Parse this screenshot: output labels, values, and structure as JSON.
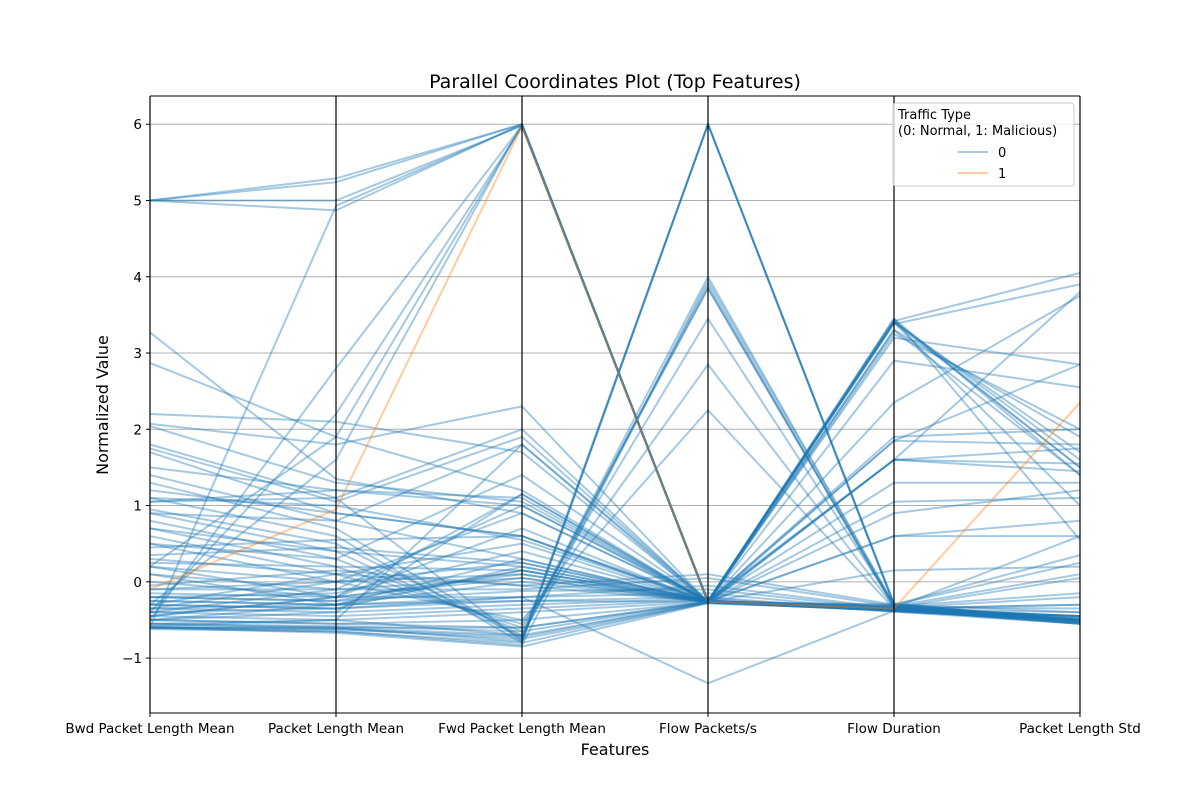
{
  "chart_data": {
    "type": "line",
    "subtype": "parallel-coordinates",
    "title": "Parallel Coordinates Plot (Top Features)",
    "xlabel": "Features",
    "ylabel": "Normalized Value",
    "categories": [
      "Bwd Packet Length Mean",
      "Packet Length Mean",
      "Fwd Packet Length Mean",
      "Flow Packets/s",
      "Flow Duration",
      "Packet Length Std"
    ],
    "ylim": [
      -1.72,
      6.37
    ],
    "yticks": [
      -1,
      0,
      1,
      2,
      3,
      4,
      5,
      6
    ],
    "ytick_labels": [
      "−1",
      "0",
      "1",
      "2",
      "3",
      "4",
      "5",
      "6"
    ],
    "grid": true,
    "legend": {
      "title_line1": "Traffic Type",
      "title_line2": "(0: Normal, 1: Malicious)",
      "placement": "top-right",
      "entries": [
        {
          "label": "0",
          "color": "#1f77b4"
        },
        {
          "label": "1",
          "color": "#ff7f0e"
        }
      ]
    },
    "series": [
      {
        "name": "0",
        "color": "#1f77b4",
        "opacity": 0.4,
        "lines": [
          [
            5.0,
            5.29,
            6.0,
            -0.26,
            -0.33,
            -0.52
          ],
          [
            5.0,
            5.24,
            6.0,
            -0.26,
            -0.35,
            -0.5
          ],
          [
            5.0,
            5.0,
            5.98,
            -0.27,
            -0.34,
            -0.55
          ],
          [
            5.0,
            4.87,
            6.0,
            -0.27,
            -0.36,
            -0.54
          ],
          [
            -0.6,
            4.93,
            5.99,
            -0.26,
            -0.33,
            -0.5
          ],
          [
            -0.5,
            2.8,
            5.98,
            -0.25,
            -0.35,
            -0.45
          ],
          [
            -0.4,
            2.2,
            5.97,
            -0.27,
            -0.34,
            -0.5
          ],
          [
            -0.3,
            1.6,
            6.0,
            -0.26,
            -0.36,
            -0.5
          ],
          [
            0.2,
            1.9,
            5.98,
            -0.25,
            -0.35,
            -0.5
          ],
          [
            3.27,
            1.35,
            0.9,
            -0.25,
            3.45,
            0.55
          ],
          [
            2.87,
            1.9,
            1.2,
            -0.26,
            3.4,
            1.0
          ],
          [
            2.2,
            2.1,
            1.7,
            -0.27,
            3.3,
            1.4
          ],
          [
            2.07,
            1.8,
            2.3,
            -0.27,
            3.42,
            4.05
          ],
          [
            2.04,
            1.3,
            1.05,
            -0.25,
            3.38,
            3.9
          ],
          [
            1.8,
            1.1,
            2.0,
            -0.27,
            2.35,
            3.75
          ],
          [
            1.75,
            1.05,
            1.9,
            -0.26,
            3.2,
            2.85
          ],
          [
            1.7,
            0.9,
            0.6,
            -0.27,
            2.9,
            2.55
          ],
          [
            1.5,
            1.2,
            1.1,
            -0.26,
            1.9,
            2.0
          ],
          [
            1.4,
            0.8,
            1.8,
            -0.28,
            1.6,
            1.75
          ],
          [
            1.3,
            0.7,
            -0.75,
            6.0,
            -0.28,
            -0.52
          ],
          [
            1.1,
            0.6,
            -0.8,
            6.0,
            -0.3,
            -0.5
          ],
          [
            1.05,
            1.1,
            -0.78,
            6.0,
            -0.3,
            -0.53
          ],
          [
            0.95,
            0.5,
            -0.7,
            4.0,
            -0.3,
            -0.5
          ],
          [
            0.9,
            0.4,
            -0.72,
            3.9,
            -0.35,
            -0.45
          ],
          [
            0.8,
            0.3,
            -0.65,
            3.85,
            -0.32,
            -0.48
          ],
          [
            0.7,
            0.2,
            -0.6,
            3.45,
            -0.3,
            -0.5
          ],
          [
            0.6,
            0.1,
            -0.55,
            2.85,
            -0.33,
            -0.5
          ],
          [
            0.5,
            0.0,
            -0.5,
            2.25,
            -0.35,
            -0.5
          ],
          [
            0.45,
            0.55,
            0.6,
            -0.24,
            1.6,
            1.55
          ],
          [
            0.35,
            0.45,
            0.25,
            -0.25,
            1.3,
            1.3
          ],
          [
            0.25,
            0.2,
            0.15,
            -0.26,
            1.05,
            1.1
          ],
          [
            0.2,
            -0.2,
            0.05,
            -0.26,
            0.6,
            0.6
          ],
          [
            0.1,
            -0.3,
            0.0,
            -0.26,
            0.15,
            0.2
          ],
          [
            -0.05,
            0.15,
            -0.05,
            0.1,
            -0.3,
            0.35
          ],
          [
            -0.1,
            -0.1,
            -0.1,
            0.05,
            -0.32,
            -0.15
          ],
          [
            -0.15,
            -0.2,
            -0.2,
            -0.05,
            -0.35,
            -0.3
          ],
          [
            -0.2,
            -0.25,
            -0.12,
            -0.1,
            -0.36,
            -0.4
          ],
          [
            -0.25,
            -0.3,
            -0.2,
            -0.15,
            -0.38,
            -0.45
          ],
          [
            -0.3,
            -0.35,
            -0.25,
            -0.2,
            -0.39,
            -0.5
          ],
          [
            -0.35,
            -0.4,
            -0.3,
            -0.22,
            -0.38,
            -0.52
          ],
          [
            -0.4,
            -0.45,
            -0.35,
            -0.24,
            -0.39,
            -0.55
          ],
          [
            -0.45,
            -0.5,
            -0.4,
            -0.26,
            -0.38,
            -0.53
          ],
          [
            -0.5,
            -0.55,
            -0.5,
            -0.27,
            -0.37,
            -0.55
          ],
          [
            -0.55,
            -0.6,
            -0.6,
            -0.27,
            -0.38,
            -0.52
          ],
          [
            -0.6,
            -0.62,
            -0.75,
            -0.28,
            -0.37,
            -0.55
          ],
          [
            -0.62,
            -0.65,
            -0.8,
            -0.27,
            -0.38,
            -0.5
          ],
          [
            -0.6,
            -0.67,
            -0.85,
            -0.28,
            -0.37,
            -0.53
          ],
          [
            -0.6,
            -0.6,
            -0.78,
            6.0,
            -0.3,
            -0.5
          ],
          [
            -0.6,
            -0.65,
            -0.83,
            3.95,
            -0.3,
            -0.48
          ],
          [
            -0.55,
            -0.5,
            -0.7,
            3.85,
            -0.32,
            -0.5
          ],
          [
            -0.5,
            -0.3,
            0.15,
            -0.25,
            3.42,
            1.6
          ],
          [
            -0.45,
            -0.2,
            0.1,
            -0.26,
            3.3,
            1.9
          ],
          [
            -0.4,
            -0.1,
            0.05,
            -0.27,
            3.25,
            2.0
          ],
          [
            -0.35,
            0.0,
            0.1,
            -0.26,
            3.45,
            1.4
          ],
          [
            -0.3,
            0.1,
            -0.05,
            -0.26,
            3.4,
            1.5
          ],
          [
            -0.3,
            -0.35,
            0.2,
            -0.25,
            1.85,
            1.8
          ],
          [
            -0.25,
            -0.3,
            0.3,
            -0.26,
            1.6,
            1.45
          ],
          [
            -0.2,
            -0.25,
            0.15,
            -0.27,
            0.9,
            1.2
          ],
          [
            -0.35,
            -0.3,
            -0.25,
            -0.26,
            0.6,
            0.8
          ],
          [
            -0.4,
            -0.35,
            -0.2,
            -1.33,
            -0.38,
            -0.5
          ],
          [
            0.0,
            -0.2,
            1.15,
            -0.26,
            -0.35,
            -0.45
          ],
          [
            0.1,
            -0.1,
            1.0,
            -0.25,
            -0.34,
            -0.2
          ],
          [
            0.2,
            0.0,
            0.9,
            -0.26,
            -0.32,
            0.1
          ],
          [
            0.3,
            0.1,
            0.5,
            -0.27,
            -0.3,
            0.25
          ],
          [
            0.5,
            0.3,
            1.4,
            -0.26,
            -0.3,
            -0.4
          ],
          [
            1.1,
            1.0,
            0.55,
            -0.25,
            -0.33,
            -0.35
          ],
          [
            0.9,
            0.8,
            0.3,
            -0.26,
            -0.35,
            -0.45
          ],
          [
            0.7,
            0.4,
            0.2,
            -0.26,
            -0.36,
            -0.48
          ],
          [
            -0.58,
            -0.5,
            1.8,
            -0.25,
            -0.35,
            -0.45
          ],
          [
            -0.5,
            -0.4,
            1.15,
            -0.26,
            -0.34,
            -0.5
          ],
          [
            -0.45,
            -0.2,
            0.7,
            -0.27,
            -0.33,
            -0.5
          ],
          [
            -0.2,
            -0.15,
            0.4,
            -0.26,
            -0.35,
            -0.3
          ],
          [
            -0.1,
            0.0,
            0.25,
            -0.25,
            -0.34,
            0.05
          ],
          [
            1.05,
            1.2,
            1.0,
            -0.26,
            -0.35,
            -0.5
          ],
          [
            1.2,
            0.9,
            0.6,
            -0.26,
            -0.34,
            0.6
          ],
          [
            -0.58,
            -0.6,
            -0.7,
            -0.27,
            1.6,
            3.8
          ],
          [
            -0.6,
            -0.62,
            -0.72,
            -0.27,
            1.85,
            2.85
          ],
          [
            -0.55,
            -0.58,
            -0.65,
            -0.26,
            3.4,
            1.7
          ],
          [
            -0.5,
            -0.55,
            -0.6,
            -0.26,
            3.42,
            1.5
          ]
        ]
      },
      {
        "name": "1",
        "color": "#ff7f0e",
        "opacity": 0.4,
        "lines": [
          [
            -0.1,
            0.95,
            5.97,
            -0.26,
            -0.35,
            2.35
          ]
        ]
      }
    ]
  }
}
